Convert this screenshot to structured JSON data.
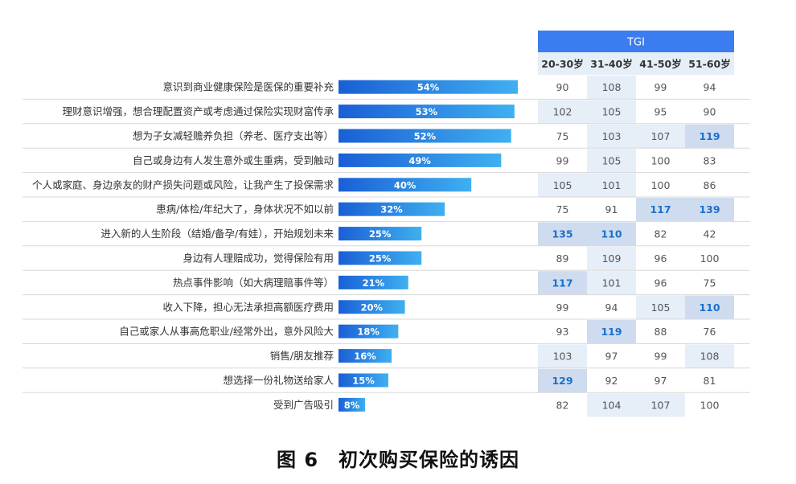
{
  "chart_data": {
    "type": "bar",
    "orientation": "horizontal",
    "categories": [
      "意识到商业健康保险是医保的重要补充",
      "理财意识增强，想合理配置资产或考虑通过保险实现财富传承",
      "想为子女减轻赡养负担（养老、医疗支出等）",
      "自己或身边有人发生意外或生重病，受到触动",
      "个人或家庭、身边亲友的财产损失问题或风险，让我产生了投保需求",
      "患病/体检/年纪大了，身体状况不如以前",
      "进入新的人生阶段（结婚/备孕/有娃），开始规划未来",
      "身边有人理赔成功，觉得保险有用",
      "热点事件影响（如大病理赔事件等）",
      "收入下降，担心无法承担高额医疗费用",
      "自己或家人从事高危职业/经常外出，意外风险大",
      "销售/朋友推荐",
      "想选择一份礼物送给家人",
      "受到广告吸引"
    ],
    "values": [
      54,
      53,
      52,
      49,
      40,
      32,
      25,
      25,
      21,
      20,
      18,
      16,
      15,
      8
    ],
    "value_labels": [
      "54%",
      "53%",
      "52%",
      "49%",
      "40%",
      "32%",
      "25%",
      "25%",
      "21%",
      "20%",
      "18%",
      "16%",
      "15%",
      "8%"
    ],
    "xlim": [
      0,
      60
    ],
    "bar_color_start": "#1a5fd6",
    "bar_color_end": "#3fb0f0",
    "tgi_table": {
      "header": "TGI",
      "header_color": "#3b7cf0",
      "columns": [
        "20-30岁",
        "31-40岁",
        "41-50岁",
        "51-60岁"
      ],
      "rows": [
        [
          90,
          108,
          99,
          94
        ],
        [
          102,
          105,
          95,
          90
        ],
        [
          75,
          103,
          107,
          119
        ],
        [
          99,
          105,
          100,
          83
        ],
        [
          105,
          101,
          100,
          86
        ],
        [
          75,
          91,
          117,
          139
        ],
        [
          135,
          110,
          82,
          42
        ],
        [
          89,
          109,
          96,
          100
        ],
        [
          117,
          101,
          96,
          75
        ],
        [
          99,
          94,
          105,
          110
        ],
        [
          93,
          119,
          88,
          76
        ],
        [
          103,
          97,
          99,
          108
        ],
        [
          129,
          92,
          97,
          81
        ],
        [
          82,
          104,
          107,
          100
        ]
      ],
      "highlight_threshold": 110,
      "highlight_text_color": "#1a6fd0",
      "strong_fill": "#cfdcef",
      "light_fill": "#e6eef8"
    }
  },
  "caption": "图 6　初次购买保险的诱因"
}
